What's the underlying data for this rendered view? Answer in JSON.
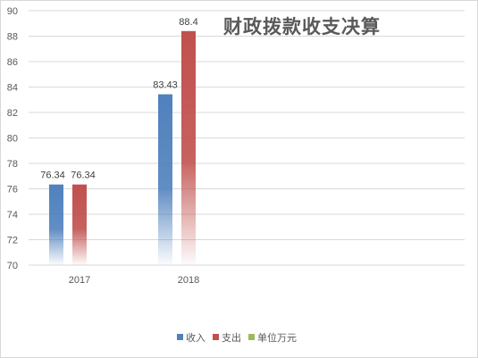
{
  "chart_data": {
    "type": "bar",
    "title": "财政拨款收支决算",
    "categories": [
      "2017",
      "2018"
    ],
    "series": [
      {
        "name": "收入",
        "values": [
          76.34,
          83.43
        ],
        "labels": [
          "76.34",
          "83.43"
        ],
        "color": "#4f81bd"
      },
      {
        "name": "支出",
        "values": [
          76.34,
          88.4
        ],
        "labels": [
          "76.34",
          "88.4"
        ],
        "color": "#c0504d"
      },
      {
        "name": "单位万元",
        "values": [
          null,
          null
        ],
        "labels": [
          "",
          ""
        ],
        "color": "#9bbb59"
      }
    ],
    "yticks": [
      70,
      72,
      74,
      76,
      78,
      80,
      82,
      84,
      86,
      88,
      90
    ],
    "ylim": [
      70,
      90
    ],
    "xlabel": "",
    "ylabel": "",
    "grid": true,
    "legend": "bottom"
  }
}
